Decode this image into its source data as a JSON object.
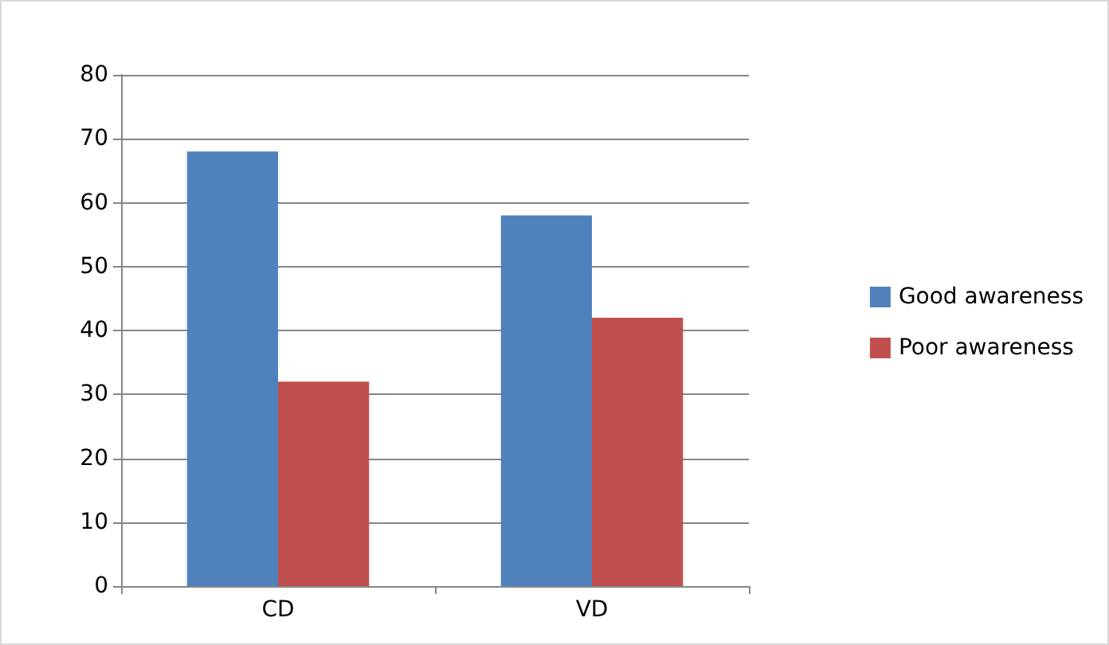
{
  "chart_data": {
    "type": "bar",
    "categories": [
      "CD",
      "VD"
    ],
    "series": [
      {
        "name": "Good awareness",
        "color": "#4f81bd",
        "values": [
          68,
          58
        ]
      },
      {
        "name": "Poor awareness",
        "color": "#c0504d",
        "values": [
          32,
          42
        ]
      }
    ],
    "ylim": [
      0,
      80
    ],
    "yticks": [
      0,
      10,
      20,
      30,
      40,
      50,
      60,
      70,
      80
    ],
    "grid": "y",
    "legend": "right"
  }
}
